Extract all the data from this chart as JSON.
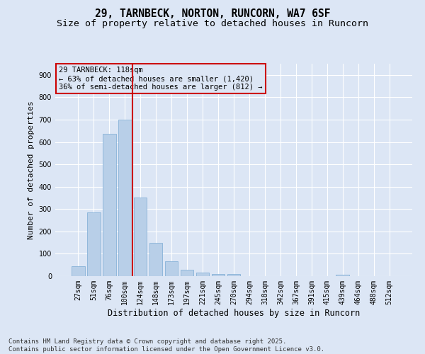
{
  "title": "29, TARNBECK, NORTON, RUNCORN, WA7 6SF",
  "subtitle": "Size of property relative to detached houses in Runcorn",
  "xlabel": "Distribution of detached houses by size in Runcorn",
  "ylabel": "Number of detached properties",
  "bar_labels": [
    "27sqm",
    "51sqm",
    "76sqm",
    "100sqm",
    "124sqm",
    "148sqm",
    "173sqm",
    "197sqm",
    "221sqm",
    "245sqm",
    "270sqm",
    "294sqm",
    "318sqm",
    "342sqm",
    "367sqm",
    "391sqm",
    "415sqm",
    "439sqm",
    "464sqm",
    "488sqm",
    "512sqm"
  ],
  "bar_values": [
    45,
    285,
    635,
    700,
    350,
    148,
    65,
    30,
    15,
    10,
    8,
    0,
    0,
    0,
    0,
    0,
    0,
    7,
    0,
    0,
    0
  ],
  "bar_color": "#b8cfe8",
  "bar_edge_color": "#7aaad4",
  "background_color": "#dce6f5",
  "grid_color": "#ffffff",
  "vline_color": "#cc0000",
  "vline_x_index": 3.5,
  "annotation_text": "29 TARNBECK: 118sqm\n← 63% of detached houses are smaller (1,420)\n36% of semi-detached houses are larger (812) →",
  "annotation_box_color": "#cc0000",
  "footer_text": "Contains HM Land Registry data © Crown copyright and database right 2025.\nContains public sector information licensed under the Open Government Licence v3.0.",
  "ylim": [
    0,
    950
  ],
  "yticks": [
    0,
    100,
    200,
    300,
    400,
    500,
    600,
    700,
    800,
    900
  ],
  "title_fontsize": 10.5,
  "subtitle_fontsize": 9.5,
  "xlabel_fontsize": 8.5,
  "ylabel_fontsize": 8,
  "tick_fontsize": 7,
  "footer_fontsize": 6.5,
  "ann_fontsize": 7.5
}
